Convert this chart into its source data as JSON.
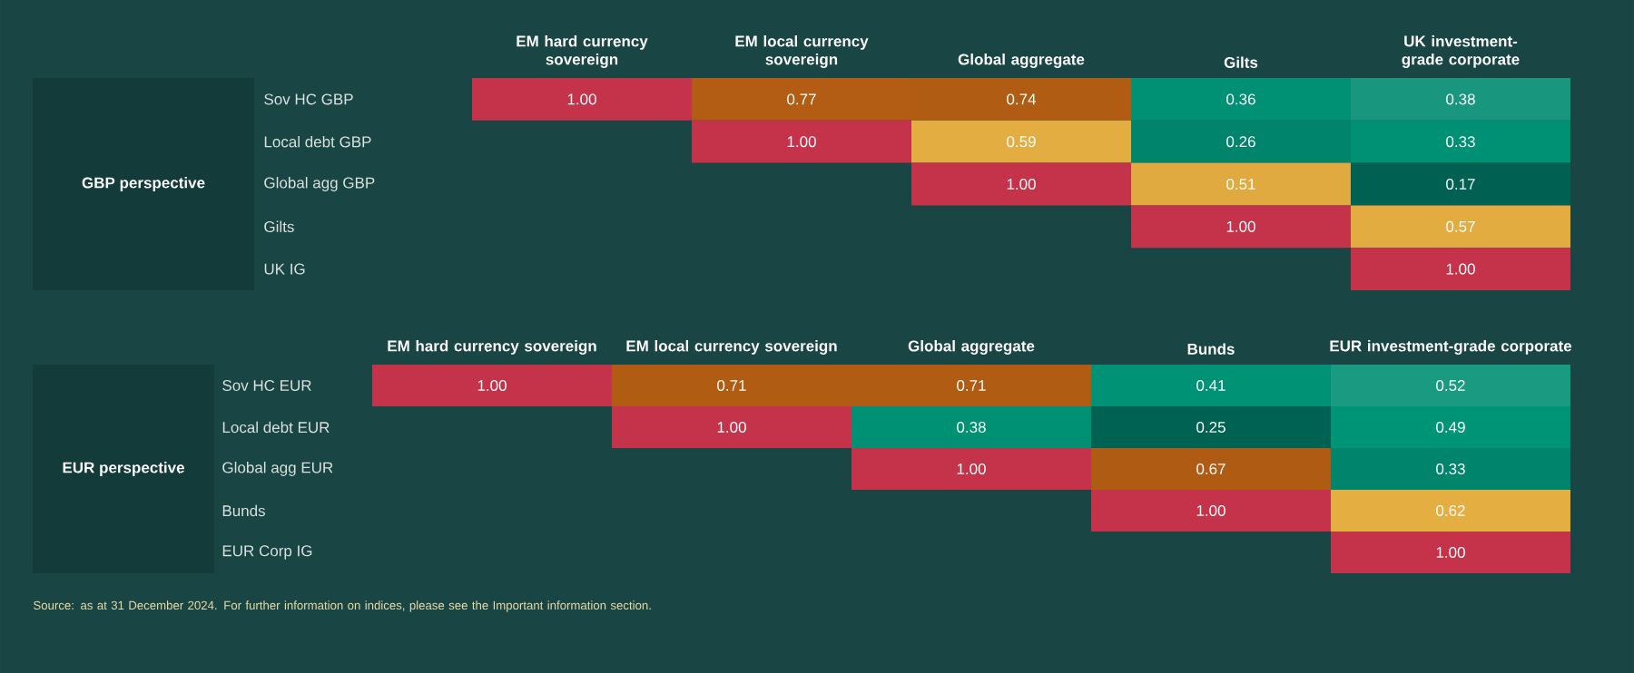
{
  "chart_data": [
    {
      "type": "heatmap",
      "ylabel": "GBP perspective",
      "categories": [
        "EM hard currency sovereign",
        "EM local currency sovereign",
        "Global aggregate",
        "Gilts",
        "UK investment-grade corporate"
      ],
      "y_categories": [
        "Sov HC GBP",
        "Local debt GBP",
        "Global agg GBP",
        "Gilts",
        "UK IG"
      ],
      "cells": [
        [
          1,
          0.77,
          0.74,
          0.36,
          0.38
        ],
        [
          null,
          1,
          0.59,
          0.26,
          0.33
        ],
        [
          null,
          null,
          1,
          0.51,
          0.17
        ],
        [
          null,
          null,
          null,
          1,
          0.57
        ],
        [
          null,
          null,
          null,
          null,
          1
        ]
      ],
      "cell_labels": [
        [
          "1.00",
          "0.77",
          "0.74",
          "0.36",
          "0.38"
        ],
        [
          null,
          "1.00",
          "0.59",
          "0.26",
          "0.33"
        ],
        [
          null,
          null,
          "1.00",
          "0.51",
          "0.17"
        ],
        [
          null,
          null,
          null,
          "1.00",
          "0.57"
        ],
        [
          null,
          null,
          null,
          null,
          "1.00"
        ]
      ],
      "colors": [
        [
          "#c4334a",
          "#b86014",
          "#b86014",
          "#00a080",
          "#1ba68b"
        ],
        [
          null,
          "#c4334a",
          "#f2b845",
          "#009478",
          "#00a080"
        ],
        [
          null,
          null,
          "#c4334a",
          "#f2b845",
          "#006e5c"
        ],
        [
          null,
          null,
          null,
          "#c4334a",
          "#f2b845"
        ],
        [
          null,
          null,
          null,
          null,
          "#c4334a"
        ]
      ]
    },
    {
      "type": "heatmap",
      "ylabel": "EUR perspective",
      "categories": [
        "EM hard currency sovereign",
        "EM local currency sovereign",
        "Global aggregate",
        "Bunds",
        "EUR investment-grade corporate"
      ],
      "y_categories": [
        "Sov HC EUR",
        "Local debt EUR",
        "Global agg EUR",
        "Bunds",
        "EUR Corp IG"
      ],
      "cells": [
        [
          1,
          0.71,
          0.71,
          0.41,
          0.52
        ],
        [
          null,
          1,
          0.38,
          0.25,
          0.49
        ],
        [
          null,
          null,
          1,
          0.67,
          0.33
        ],
        [
          null,
          null,
          null,
          1,
          0.62
        ],
        [
          null,
          null,
          null,
          null,
          1
        ]
      ],
      "cell_labels": [
        [
          "1.00",
          "0.71",
          "0.71",
          "0.41",
          "0.52"
        ],
        [
          null,
          "1.00",
          "0.38",
          "0.25",
          "0.49"
        ],
        [
          null,
          null,
          "1.00",
          "0.67",
          "0.33"
        ],
        [
          null,
          null,
          null,
          "1.00",
          "0.62"
        ],
        [
          null,
          null,
          null,
          null,
          "1.00"
        ]
      ],
      "colors": [
        [
          "#c4334a",
          "#b86014",
          "#b86014",
          "#00a080",
          "#1ba68b"
        ],
        [
          null,
          "#c4334a",
          "#00a080",
          "#006e5c",
          "#00a080"
        ],
        [
          null,
          null,
          "#c4334a",
          "#b86014",
          "#009478"
        ],
        [
          null,
          null,
          null,
          "#c4334a",
          "#f2b845"
        ],
        [
          null,
          null,
          null,
          null,
          "#c4334a"
        ]
      ],
      "annotations": [
        "Source: as at 31 December 2024. For further information on indices, please see the Important information section."
      ]
    }
  ]
}
